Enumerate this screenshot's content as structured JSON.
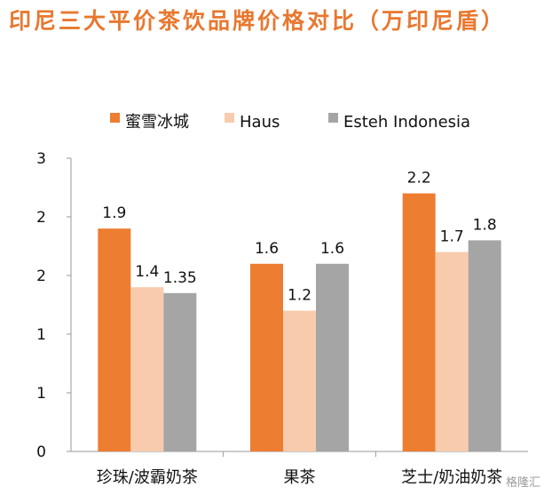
{
  "title": "印尼三大平价茶饮品牌价格对比（万印尼盾）",
  "watermark": "格隆汇",
  "colors": {
    "title": "#e8782f",
    "axis": "#9a9a9a",
    "text": "#111111"
  },
  "chart_data": {
    "type": "bar",
    "title": "印尼三大平价茶饮品牌价格对比（万印尼盾）",
    "xlabel": "",
    "ylabel": "",
    "categories": [
      "珍珠/波霸奶茶",
      "果茶",
      "芝士/奶油奶茶"
    ],
    "y_tick_labels": [
      "0",
      "1",
      "1",
      "2",
      "2",
      "3"
    ],
    "ylim": [
      0,
      2.5
    ],
    "grid": false,
    "legend_position": "top",
    "series": [
      {
        "name": "蜜雪冰城",
        "color": "#ed7d31",
        "values": [
          1.9,
          1.6,
          2.2
        ],
        "labels": [
          "1.9",
          "1.6",
          "2.2"
        ]
      },
      {
        "name": "Haus",
        "color": "#f8cbad",
        "values": [
          1.4,
          1.2,
          1.7
        ],
        "labels": [
          "1.4",
          "1.2",
          "1.7"
        ]
      },
      {
        "name": "Esteh Indonesia",
        "color": "#a5a5a5",
        "values": [
          1.35,
          1.6,
          1.8
        ],
        "labels": [
          "1.35",
          "1.6",
          "1.8"
        ]
      }
    ]
  }
}
